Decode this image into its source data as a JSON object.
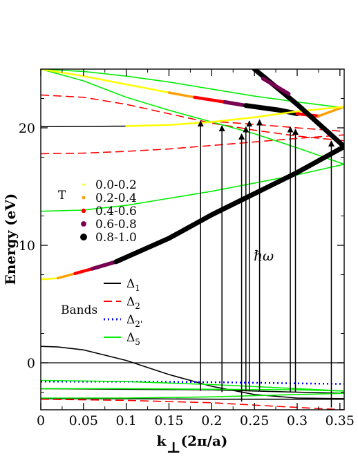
{
  "chart_data": {
    "type": "line",
    "xlabel_main": "k",
    "xlabel_sub": "⊥",
    "xlabel_rest": "(2π/a)",
    "ylabel": "Energy (eV)",
    "xlim": [
      0,
      0.355
    ],
    "ylim": [
      -4,
      25
    ],
    "xticks": [
      0,
      0.05,
      0.1,
      0.15,
      0.2,
      0.25,
      0.3,
      0.35
    ],
    "xtick_labels": [
      "0",
      "0.05",
      "0.1",
      "0.15",
      "0.2",
      "0.25",
      "0.3",
      "0.35"
    ],
    "yticks": [
      0,
      10,
      20
    ],
    "ytick_labels": [
      "0",
      "10",
      "20"
    ],
    "hline_at": 0,
    "legend_T": {
      "title": "T",
      "items": [
        {
          "label": "0.0-0.2",
          "color": "#ffff00",
          "size": 2.5
        },
        {
          "label": "0.2-0.4",
          "color": "#ff9f00",
          "size": 3.5
        },
        {
          "label": "0.4-0.6",
          "color": "#ff0000",
          "size": 4.5
        },
        {
          "label": "0.6-0.8",
          "color": "#780050",
          "size": 5.5
        },
        {
          "label": "0.8-1.0",
          "color": "#000000",
          "size": 7
        }
      ]
    },
    "legend_bands": {
      "title": "Bands",
      "items": [
        {
          "label": "Δ",
          "sub": "1",
          "color": "#000000",
          "dash": "none"
        },
        {
          "label": "Δ",
          "sub": "2",
          "color": "#ff0000",
          "dash": "12,6"
        },
        {
          "label": "Δ",
          "sub": "2'",
          "color": "#0000ff",
          "dash": "2,4"
        },
        {
          "label": "Δ",
          "sub": "5",
          "color": "#00ee00",
          "dash": "none"
        }
      ]
    },
    "annotation": "ℏω",
    "band_lines": [
      {
        "name": "Δ1",
        "color": "#000000",
        "dash": "none",
        "points": [
          [
            0,
            1.4
          ],
          [
            0.02,
            1.35
          ],
          [
            0.05,
            1.1
          ],
          [
            0.1,
            0.2
          ],
          [
            0.15,
            -1.0
          ],
          [
            0.2,
            -2.0
          ],
          [
            0.25,
            -2.7
          ],
          [
            0.3,
            -3.0
          ],
          [
            0.355,
            -3.05
          ]
        ]
      },
      {
        "name": "Δ1",
        "color": "#000000",
        "dash": "none",
        "points": [
          [
            0,
            -2.2
          ],
          [
            0.1,
            -2.25
          ],
          [
            0.2,
            -2.3
          ],
          [
            0.3,
            -2.5
          ],
          [
            0.355,
            -2.6
          ]
        ]
      },
      {
        "name": "Δ1",
        "color": "#000000",
        "dash": "none",
        "points": [
          [
            0,
            -3.05
          ],
          [
            0.1,
            -3.05
          ],
          [
            0.2,
            -3.1
          ],
          [
            0.3,
            -3.1
          ],
          [
            0.355,
            -3.1
          ]
        ]
      },
      {
        "name": "Δ2",
        "color": "#ff0000",
        "dash": "12,6",
        "points": [
          [
            0,
            -3.1
          ],
          [
            0.1,
            -3.2
          ],
          [
            0.2,
            -3.4
          ],
          [
            0.3,
            -3.8
          ],
          [
            0.355,
            -4.0
          ]
        ]
      },
      {
        "name": "Δ2'",
        "color": "#0000ff",
        "dash": "2,4",
        "points": [
          [
            0,
            -1.6
          ],
          [
            0.1,
            -1.6
          ],
          [
            0.2,
            -1.65
          ],
          [
            0.3,
            -1.75
          ],
          [
            0.355,
            -1.8
          ]
        ]
      },
      {
        "name": "Δ5",
        "color": "#00ee00",
        "dash": "none",
        "points": [
          [
            0,
            -1.5
          ],
          [
            0.1,
            -1.6
          ],
          [
            0.2,
            -1.85
          ],
          [
            0.3,
            -2.2
          ],
          [
            0.355,
            -2.4
          ]
        ]
      },
      {
        "name": "Δ5",
        "color": "#00ee00",
        "dash": "none",
        "points": [
          [
            0,
            -2.2
          ],
          [
            0.1,
            -2.2
          ],
          [
            0.2,
            -2.25
          ],
          [
            0.3,
            -2.3
          ],
          [
            0.355,
            -2.4
          ]
        ]
      },
      {
        "name": "Δ5",
        "color": "#00ee00",
        "dash": "none",
        "points": [
          [
            0,
            -3.0
          ],
          [
            0.1,
            -3.0
          ],
          [
            0.2,
            -2.9
          ],
          [
            0.3,
            -2.7
          ],
          [
            0.355,
            -2.6
          ]
        ]
      },
      {
        "name": "Δ2",
        "color": "#ff0000",
        "dash": "12,6",
        "points": [
          [
            0,
            22.8
          ],
          [
            0.05,
            22.6
          ],
          [
            0.1,
            22.0
          ],
          [
            0.15,
            21.2
          ],
          [
            0.2,
            20.4
          ],
          [
            0.25,
            19.8
          ],
          [
            0.3,
            19.3
          ],
          [
            0.355,
            18.9
          ]
        ]
      },
      {
        "name": "Δ2",
        "color": "#ff0000",
        "dash": "12,6",
        "points": [
          [
            0,
            17.8
          ],
          [
            0.05,
            17.85
          ],
          [
            0.1,
            18.0
          ],
          [
            0.15,
            18.2
          ],
          [
            0.2,
            18.5
          ],
          [
            0.25,
            18.8
          ],
          [
            0.3,
            19.1
          ],
          [
            0.355,
            19.4
          ]
        ]
      },
      {
        "name": "Δ2",
        "color": "#ff0000",
        "dash": "12,6",
        "points": [
          [
            0.21,
            20.5
          ],
          [
            0.25,
            20.3
          ],
          [
            0.3,
            20.0
          ],
          [
            0.355,
            19.7
          ]
        ]
      },
      {
        "name": "Δ5",
        "color": "#00ee00",
        "dash": "none",
        "points": [
          [
            0,
            25.0
          ],
          [
            0.05,
            24.0
          ],
          [
            0.1,
            22.6
          ],
          [
            0.15,
            21.5
          ],
          [
            0.2,
            20.5
          ],
          [
            0.25,
            19.5
          ],
          [
            0.3,
            18.3
          ],
          [
            0.355,
            16.9
          ]
        ]
      },
      {
        "name": "Δ5",
        "color": "#00ee00",
        "dash": "none",
        "points": [
          [
            0,
            25.0
          ],
          [
            0.05,
            24.8
          ],
          [
            0.1,
            24.4
          ],
          [
            0.15,
            23.9
          ],
          [
            0.2,
            23.3
          ],
          [
            0.25,
            22.7
          ],
          [
            0.3,
            22.2
          ],
          [
            0.355,
            21.7
          ]
        ]
      },
      {
        "name": "Δ5",
        "color": "#00ee00",
        "dash": "none",
        "points": [
          [
            0,
            12.9
          ],
          [
            0.05,
            13.0
          ],
          [
            0.1,
            13.4
          ],
          [
            0.15,
            14.0
          ],
          [
            0.2,
            14.6
          ],
          [
            0.25,
            15.3
          ],
          [
            0.3,
            16.0
          ],
          [
            0.355,
            16.9
          ]
        ]
      }
    ],
    "T_bands": [
      {
        "segments": [
          {
            "points": [
              [
                0,
                25.0
              ],
              [
                0.05,
                24.4
              ],
              [
                0.1,
                23.7
              ],
              [
                0.15,
                23.0
              ]
            ],
            "color": "#ffff00",
            "size": 2.5
          },
          {
            "points": [
              [
                0.15,
                23.0
              ],
              [
                0.18,
                22.6
              ]
            ],
            "color": "#ff9f00",
            "size": 3.5
          },
          {
            "points": [
              [
                0.18,
                22.6
              ],
              [
                0.215,
                22.2
              ]
            ],
            "color": "#ff0000",
            "size": 4.5
          },
          {
            "points": [
              [
                0.215,
                22.2
              ],
              [
                0.24,
                21.9
              ]
            ],
            "color": "#780050",
            "size": 5.5
          },
          {
            "points": [
              [
                0.24,
                21.9
              ],
              [
                0.28,
                21.5
              ],
              [
                0.3,
                21.2
              ]
            ],
            "color": "#000000",
            "size": 7
          },
          {
            "points": [
              [
                0.3,
                21.2
              ],
              [
                0.325,
                21.0
              ]
            ],
            "color": "#ff0000",
            "size": 4.5
          },
          {
            "points": [
              [
                0.325,
                21.0
              ],
              [
                0.355,
                21.8
              ]
            ],
            "color": "#ff9f00",
            "size": 3.5
          }
        ]
      },
      {
        "segments": [
          {
            "points": [
              [
                0,
                20.1
              ],
              [
                0.1,
                20.15
              ]
            ],
            "color": "#000000",
            "size": 1.5
          },
          {
            "points": [
              [
                0.1,
                20.15
              ],
              [
                0.15,
                20.25
              ],
              [
                0.2,
                20.5
              ]
            ],
            "color": "#ffff00",
            "size": 2.5
          },
          {
            "points": [
              [
                0.2,
                20.5
              ],
              [
                0.25,
                20.9
              ],
              [
                0.3,
                21.4
              ],
              [
                0.355,
                21.8
              ]
            ],
            "color": "#ffff00",
            "size": 2.5
          }
        ]
      },
      {
        "segments": [
          {
            "points": [
              [
                0,
                7.1
              ],
              [
                0.02,
                7.2
              ]
            ],
            "color": "#ffff00",
            "size": 2.5
          },
          {
            "points": [
              [
                0.02,
                7.2
              ],
              [
                0.04,
                7.6
              ]
            ],
            "color": "#ff9f00",
            "size": 3.5
          },
          {
            "points": [
              [
                0.04,
                7.6
              ],
              [
                0.06,
                8.0
              ]
            ],
            "color": "#ff0000",
            "size": 4.5
          },
          {
            "points": [
              [
                0.06,
                8.0
              ],
              [
                0.088,
                8.6
              ]
            ],
            "color": "#780050",
            "size": 5.5
          },
          {
            "points": [
              [
                0.088,
                8.6
              ],
              [
                0.15,
                10.6
              ],
              [
                0.2,
                12.6
              ],
              [
                0.25,
                14.4
              ],
              [
                0.3,
                16.2
              ],
              [
                0.355,
                18.4
              ]
            ],
            "color": "#000000",
            "size": 7
          }
        ]
      },
      {
        "segments": [
          {
            "points": [
              [
                0.25,
                25.0
              ],
              [
                0.3,
                22.0
              ],
              [
                0.355,
                18.4
              ]
            ],
            "color": "#000000",
            "size": 7
          }
        ]
      },
      {
        "segments": [
          {
            "points": [
              [
                0.26,
                24.2
              ],
              [
                0.29,
                22.9
              ]
            ],
            "color": "#780050",
            "size": 5.5
          }
        ]
      }
    ],
    "transitions": [
      {
        "x": 0.187,
        "y_start": -2.4,
        "y_end": 20.7
      },
      {
        "x": 0.212,
        "y_start": -2.5,
        "y_end": 20.3
      },
      {
        "x": 0.235,
        "y_start": -3.3,
        "y_end": 19.6
      },
      {
        "x": 0.24,
        "y_start": -2.4,
        "y_end": 20.2
      },
      {
        "x": 0.244,
        "y_start": -2.4,
        "y_end": 20.7
      },
      {
        "x": 0.256,
        "y_start": -2.4,
        "y_end": 20.8
      },
      {
        "x": 0.292,
        "y_start": -2.5,
        "y_end": 20.2
      },
      {
        "x": 0.298,
        "y_start": -2.5,
        "y_end": 20.0
      },
      {
        "x": 0.34,
        "y_start": -3.8,
        "y_end": 19.0
      }
    ]
  }
}
